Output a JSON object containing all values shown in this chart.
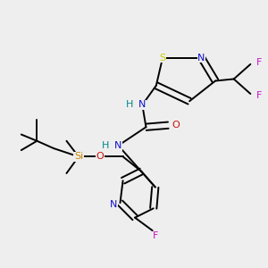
{
  "bg_color": "#eeeeee",
  "bond_lw": 1.4,
  "colors": {
    "N": "#1010cc",
    "O": "#cc1010",
    "F": "#cc10cc",
    "S": "#cccc00",
    "Si": "#cc8800",
    "H": "#008888",
    "C": "#000000",
    "bond": "#000000"
  },
  "fs": 7.5
}
